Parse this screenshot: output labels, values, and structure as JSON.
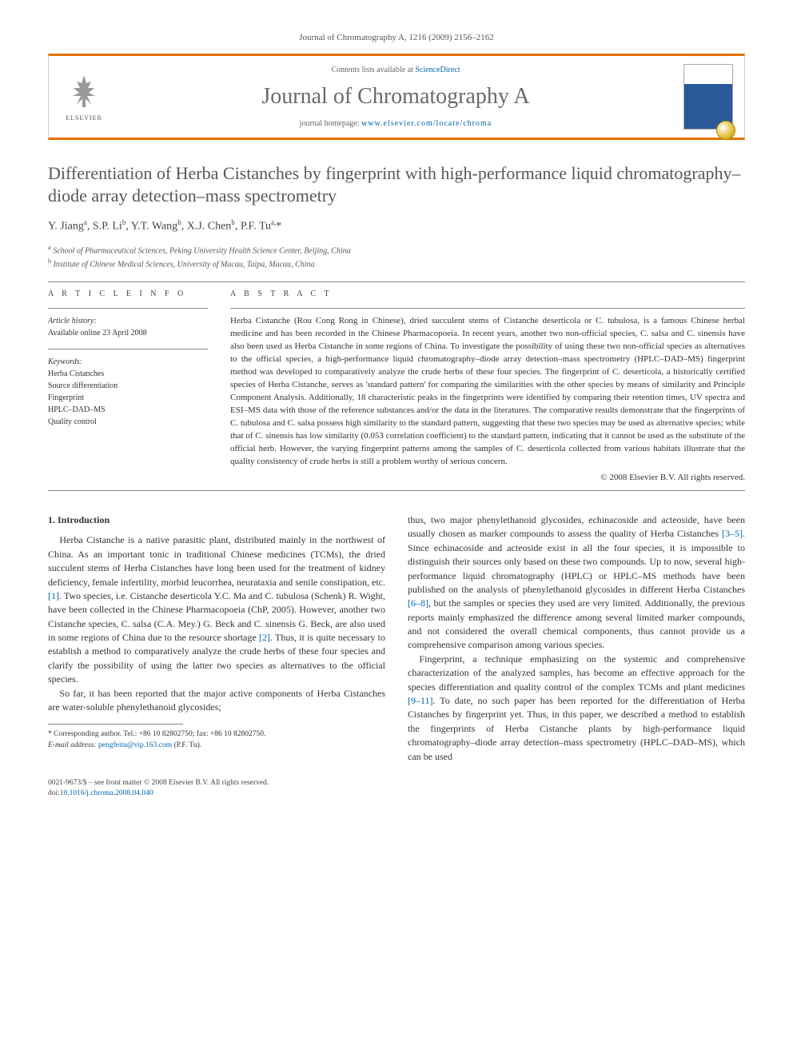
{
  "header_citation": "Journal of Chromatography A, 1216 (2009) 2156–2162",
  "masthead": {
    "publisher": "ELSEVIER",
    "contents_prefix": "Contents lists available at ",
    "contents_link": "ScienceDirect",
    "journal_name": "Journal of Chromatography A",
    "homepage_prefix": "journal homepage: ",
    "homepage_url": "www.elsevier.com/locate/chroma",
    "accent_color": "#e57200",
    "logo_color": "#ef7a00",
    "cover_blue": "#2a5a9a"
  },
  "article": {
    "title": "Differentiation of Herba Cistanches by fingerprint with high-performance liquid chromatography–diode array detection–mass spectrometry",
    "authors_html": "Y. Jiang<sup>a</sup>, S.P. Li<sup>b</sup>, Y.T. Wang<sup>b</sup>, X.J. Chen<sup>b</sup>, P.F. Tu<sup>a,</sup>*",
    "affiliations": [
      "a School of Pharmaceutical Sciences, Peking University Health Science Center, Beijing, China",
      "b Institute of Chinese Medical Sciences, University of Macau, Taipa, Macau, China"
    ]
  },
  "info": {
    "heading": "A R T I C L E   I N F O",
    "history_label": "Article history:",
    "history_value": "Available online 23 April 2008",
    "keywords_label": "Keywords:",
    "keywords": [
      "Herba Cistanches",
      "Source differentiation",
      "Fingerprint",
      "HPLC–DAD–MS",
      "Quality control"
    ]
  },
  "abstract": {
    "heading": "A B S T R A C T",
    "text": "Herba Cistanche (Rou Cong Rong in Chinese), dried succulent stems of Cistanche deserticola or C. tubulosa, is a famous Chinese herbal medicine and has been recorded in the Chinese Pharmacopoeia. In recent years, another two non-official species, C. salsa and C. sinensis have also been used as Herba Cistanche in some regions of China. To investigate the possibility of using these two non-official species as alternatives to the official species, a high-performance liquid chromatography–diode array detection–mass spectrometry (HPLC–DAD–MS) fingerprint method was developed to comparatively analyze the crude herbs of these four species. The fingerprint of C. deserticola, a historically certified species of Herba Cistanche, serves as 'standard pattern' for comparing the similarities with the other species by means of similarity and Principle Component Analysis. Additionally, 18 characteristic peaks in the fingerprints were identified by comparing their retention times, UV spectra and ESI–MS data with those of the reference substances and/or the data in the literatures. The comparative results demonstrate that the fingerprints of C. tubulosa and C. salsa possess high similarity to the standard pattern, suggesting that these two species may be used as alternative species; while that of C. sinensis has low similarity (0.053 correlation coefficient) to the standard pattern, indicating that it cannot be used as the substitute of the official herb. However, the varying fingerprint patterns among the samples of C. deserticola collected from various habitats illustrate that the quality consistency of crude herbs is still a problem worthy of serious concern.",
    "copyright": "© 2008 Elsevier B.V. All rights reserved."
  },
  "body": {
    "section1_title": "1. Introduction",
    "p1": "Herba Cistanche is a native parasitic plant, distributed mainly in the northwest of China. As an important tonic in traditional Chinese medicines (TCMs), the dried succulent stems of Herba Cistanches have long been used for the treatment of kidney deficiency, female infertility, morbid leucorrhea, neurataxia and senile constipation, etc. [1]. Two species, i.e. Cistanche deserticola Y.C. Ma and C. tubulosa (Schenk) R. Wight, have been collected in the Chinese Pharmacopoeia (ChP, 2005). However, another two Cistanche species, C. salsa (C.A. Mey.) G. Beck and C. sinensis G. Beck, are also used in some regions of China due to the resource shortage [2]. Thus, it is quite necessary to establish a method to comparatively analyze the crude herbs of these four species and clarify the possibility of using the latter two species as alternatives to the official species.",
    "p2": "So far, it has been reported that the major active components of Herba Cistanches are water-soluble phenylethanoid glycosides;",
    "p3": "thus, two major phenylethanoid glycosides, echinacoside and acteoside, have been usually chosen as marker compounds to assess the quality of Herba Cistanches [3–5]. Since echinacoside and acteoside exist in all the four species, it is impossible to distinguish their sources only based on these two compounds. Up to now, several high-performance liquid chromatography (HPLC) or HPLC–MS methods have been published on the analysis of phenylethanoid glycosides in different Herba Cistanches [6–8], but the samples or species they used are very limited. Additionally, the previous reports mainly emphasized the difference among several limited marker compounds, and not considered the overall chemical components, thus cannot provide us a comprehensive comparison among various species.",
    "p4": "Fingerprint, a technique emphasizing on the systemic and comprehensive characterization of the analyzed samples, has become an effective approach for the species differentiation and quality control of the complex TCMs and plant medicines [9–11]. To date, no such paper has been reported for the differentiation of Herba Cistanches by fingerprint yet. Thus, in this paper, we described a method to establish the fingerprints of Herba Cistanche plants by high-performance liquid chromatography–diode array detection–mass spectrometry (HPLC–DAD–MS), which can be used",
    "refs": {
      "r1": "[1]",
      "r2": "[2]",
      "r35": "[3–5]",
      "r68": "[6–8]",
      "r911": "[9–11]"
    }
  },
  "footnote": {
    "corr": "* Corresponding author. Tel.: +86 10 82802750; fax: +86 10 82802750.",
    "email_label": "E-mail address:",
    "email": "pengfeitu@vip.163.com",
    "email_suffix": "(P.F. Tu)."
  },
  "footer": {
    "issn_line": "0021-9673/$ – see front matter © 2008 Elsevier B.V. All rights reserved.",
    "doi_prefix": "doi:",
    "doi": "10.1016/j.chroma.2008.04.040"
  },
  "colors": {
    "link": "#0066aa",
    "text": "#333333",
    "heading_gray": "#575757"
  }
}
